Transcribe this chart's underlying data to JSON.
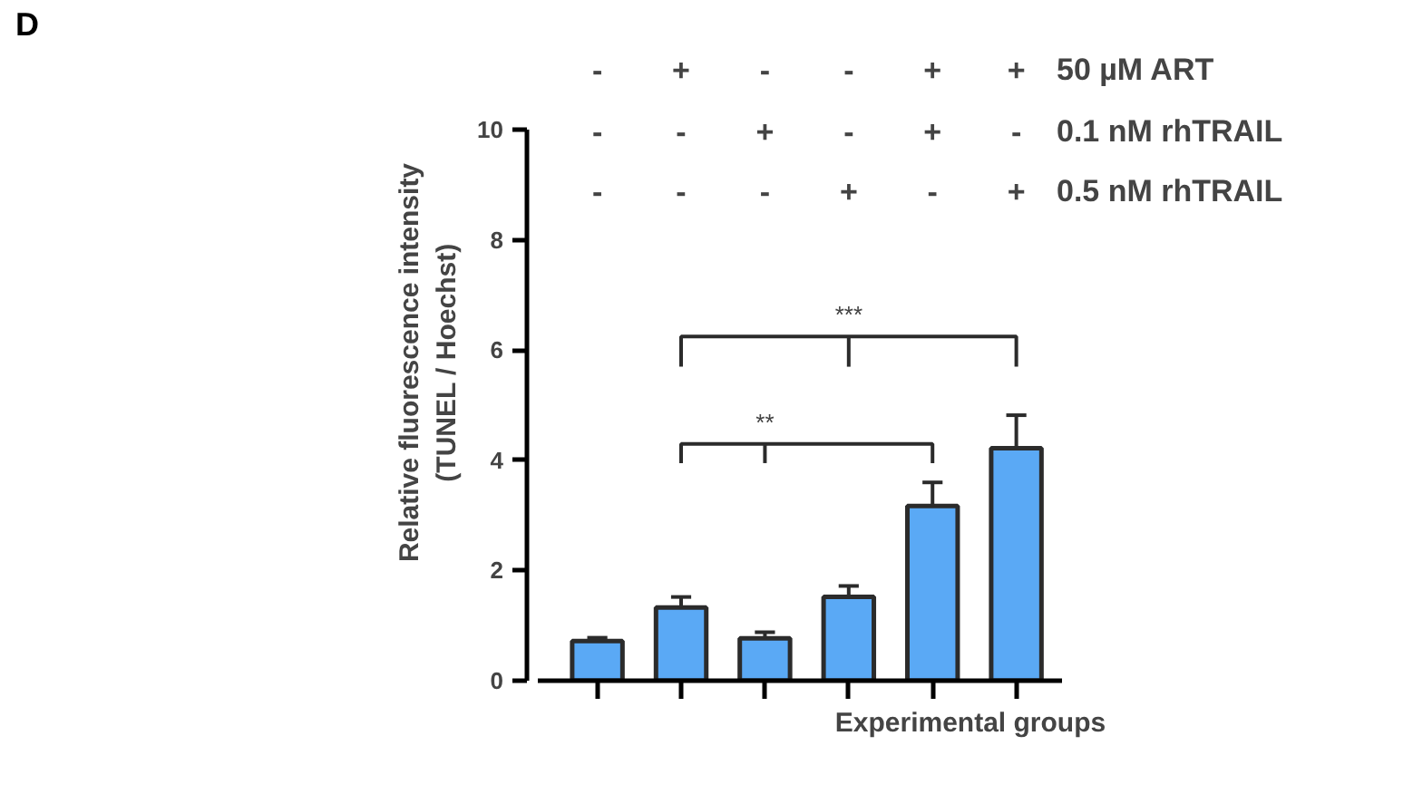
{
  "chart_data": {
    "type": "bar",
    "xlabel": "Experimental groups",
    "ylabel": "Relative fluorescence intensity\n(TUNEL / Hoechst)",
    "categories": [
      "-\n-\n-",
      "+\n-\n-",
      "-\n+\n-",
      "-\n-\n+",
      "+\n+\n-",
      "+\n-\n+"
    ],
    "values": [
      0.72,
      1.33,
      0.77,
      1.52,
      3.17,
      4.22
    ],
    "errors": [
      [
        0.72,
        0.78
      ],
      [
        1.33,
        1.52
      ],
      [
        0.77,
        0.88
      ],
      [
        1.52,
        1.72
      ],
      [
        3.17,
        3.6
      ],
      [
        4.22,
        4.82
      ]
    ],
    "color": "#5aa9f5",
    "ylim": [
      0,
      10
    ],
    "yticks": [
      0,
      2,
      4,
      6,
      8,
      10
    ],
    "grid": false,
    "tick_labels": "y",
    "annotations": [
      "D",
      "50 µM ART",
      "0.1 nM rhTRAIL",
      "0.5 nM rhTRAIL",
      "***",
      "**"
    ]
  }
}
